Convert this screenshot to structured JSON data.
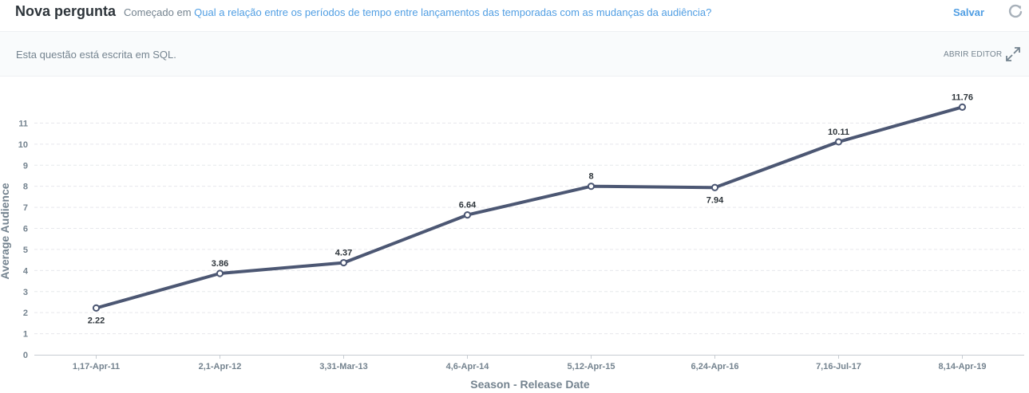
{
  "header": {
    "title": "Nova pergunta",
    "started_prefix": "Começado em",
    "started_link": "Qual a relação entre os períodos de tempo entre lançamentos das temporadas com as mudanças da audiência?",
    "save_label": "Salvar",
    "refresh_icon": "refresh-icon"
  },
  "subbar": {
    "sql_note": "Esta questão está escrita em SQL.",
    "open_editor_label": "ABRIR EDITOR",
    "expand_icon": "expand-icon"
  },
  "colors": {
    "line": "#4c5773",
    "link": "#509ee3",
    "axis_text": "#74838f",
    "grid": "#e6e8ec"
  },
  "chart_data": {
    "type": "line",
    "xlabel": "Season - Release Date",
    "ylabel": "Average Audience",
    "categories": [
      "1,17-Apr-11",
      "2,1-Apr-12",
      "3,31-Mar-13",
      "4,6-Apr-14",
      "5,12-Apr-15",
      "6,24-Apr-16",
      "7,16-Jul-17",
      "8,14-Apr-19"
    ],
    "series": [
      {
        "values": [
          2.22,
          3.86,
          4.37,
          6.64,
          8,
          7.94,
          10.11,
          11.76
        ]
      }
    ],
    "data_labels": [
      "2.22",
      "3.86",
      "4.37",
      "6.64",
      "8",
      "7.94",
      "10.11",
      "11.76"
    ],
    "yticks": [
      0,
      1,
      2,
      3,
      4,
      5,
      6,
      7,
      8,
      9,
      10,
      11
    ],
    "ylim": [
      0,
      12
    ],
    "grid": true,
    "legend": "none"
  }
}
